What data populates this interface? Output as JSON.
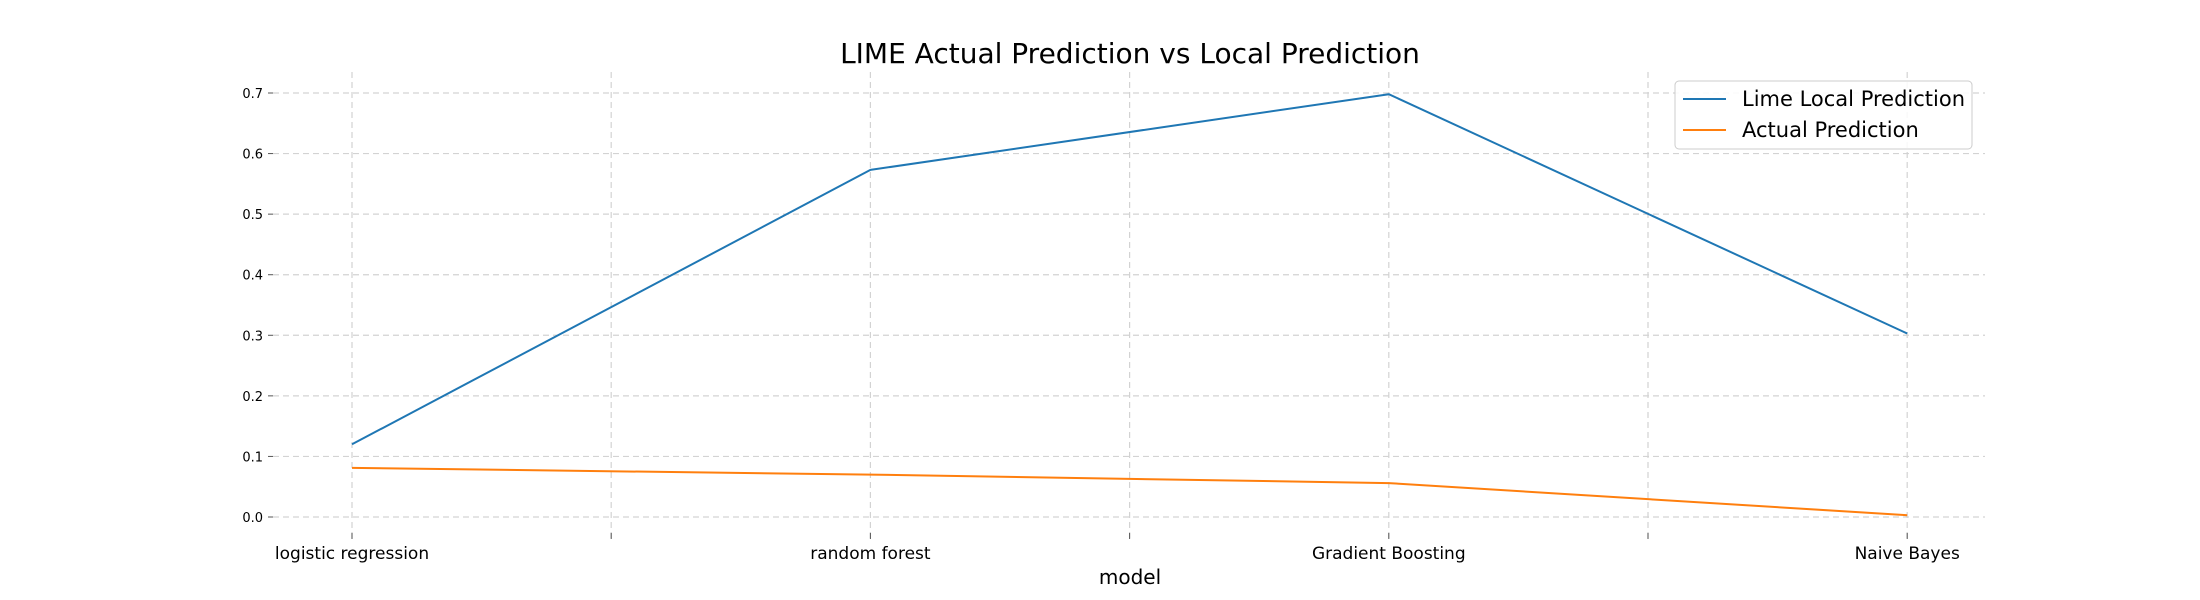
{
  "chart_data": {
    "type": "line",
    "title": "LIME Actual Prediction vs Local Prediction",
    "xlabel": "model",
    "ylabel": "",
    "categories": [
      "logistic regression",
      "",
      "random forest",
      "",
      "Gradient Boosting",
      "",
      "Naive Bayes"
    ],
    "x_tick_labels": [
      "logistic regression",
      "random forest",
      "Gradient Boosting",
      "Naive Bayes"
    ],
    "ylim": [
      0.0,
      0.7
    ],
    "y_ticks": [
      "0.0",
      "0.1",
      "0.2",
      "0.3",
      "0.4",
      "0.5",
      "0.6",
      "0.7"
    ],
    "grid": true,
    "legend_position": "top-right",
    "series": [
      {
        "name": "Lime Local Prediction",
        "color": "#1f77b4",
        "x": [
          0,
          2,
          4,
          6
        ],
        "values": [
          0.12,
          0.573,
          0.698,
          0.303
        ]
      },
      {
        "name": "Actual Prediction",
        "color": "#ff7f0e",
        "x": [
          0,
          2,
          4,
          6
        ],
        "values": [
          0.081,
          0.07,
          0.056,
          0.003
        ]
      }
    ]
  }
}
